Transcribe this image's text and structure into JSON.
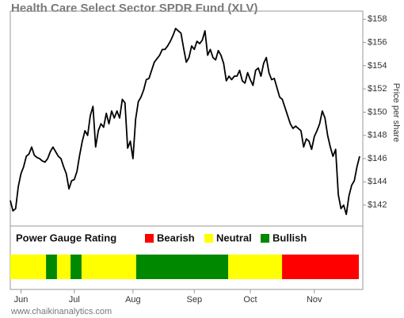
{
  "chart_data": {
    "type": "line",
    "title": "Health Care Select Sector SPDR Fund (XLV)",
    "y_label": "Price per share",
    "color": "#000000",
    "values": [
      142.4,
      141.5,
      141.7,
      143.6,
      144.7,
      145.3,
      146.2,
      146.4,
      147.0,
      146.3,
      146.1,
      146.0,
      145.8,
      145.7,
      146.0,
      146.6,
      147.0,
      146.6,
      146.2,
      146.0,
      145.3,
      144.7,
      143.4,
      144.1,
      144.2,
      144.9,
      146.3,
      147.5,
      148.4,
      148.0,
      149.7,
      150.5,
      147.0,
      148.4,
      149.0,
      148.7,
      149.9,
      149.0,
      150.1,
      149.5,
      150.1,
      149.5,
      151.1,
      150.8,
      146.9,
      147.5,
      146.0,
      149.4,
      150.9,
      151.3,
      151.9,
      152.8,
      152.9,
      153.6,
      154.3,
      154.6,
      154.9,
      155.4,
      155.4,
      155.7,
      156.1,
      156.6,
      157.2,
      157.0,
      156.8,
      155.5,
      154.3,
      154.7,
      155.7,
      155.4,
      156.1,
      155.9,
      156.2,
      157.0,
      154.9,
      155.4,
      154.7,
      154.5,
      155.3,
      154.9,
      154.2,
      152.7,
      153.1,
      152.8,
      153.1,
      153.1,
      153.6,
      152.7,
      152.5,
      153.4,
      152.8,
      152.3,
      153.6,
      153.8,
      153.1,
      154.2,
      154.7,
      153.4,
      152.8,
      152.9,
      152.1,
      151.3,
      151.1,
      150.4,
      149.7,
      149.0,
      148.6,
      148.8,
      148.6,
      148.4,
      147.0,
      147.7,
      147.5,
      146.8,
      147.9,
      148.4,
      149.0,
      150.1,
      149.5,
      148.0,
      147.0,
      146.2,
      146.8,
      142.9,
      141.7,
      142.0,
      141.2,
      142.8,
      143.7,
      144.1,
      145.3,
      146.2
    ],
    "xlim": [
      0,
      131
    ],
    "xticks": [
      {
        "value": 4,
        "label": "Jun"
      },
      {
        "value": 24,
        "label": "Jul"
      },
      {
        "value": 46,
        "label": "Aug"
      },
      {
        "value": 69,
        "label": "Sep"
      },
      {
        "value": 90,
        "label": "Oct"
      },
      {
        "value": 114,
        "label": "Nov"
      }
    ],
    "ylim": [
      140.2,
      158.7
    ],
    "yticks": [
      {
        "value": 142,
        "label": "$142"
      },
      {
        "value": 144,
        "label": "$144"
      },
      {
        "value": 146,
        "label": "$146"
      },
      {
        "value": 148,
        "label": "$148"
      },
      {
        "value": 150,
        "label": "$150"
      },
      {
        "value": 152,
        "label": "$152"
      },
      {
        "value": 154,
        "label": "$154"
      },
      {
        "value": 156,
        "label": "$156"
      },
      {
        "value": 158,
        "label": "$158"
      }
    ],
    "gauge": {
      "title": "Power Gauge Rating",
      "ratings": [
        {
          "name": "Bearish",
          "color": "#ff0000",
          "ranges": [
            [
              101.9,
              130.7
            ]
          ]
        },
        {
          "name": "Neutral",
          "color": "#ffff00",
          "ranges": [
            [
              0,
              13.4
            ],
            [
              17.5,
              22.6
            ],
            [
              26.7,
              47.2
            ],
            [
              81.7,
              101.9
            ]
          ]
        },
        {
          "name": "Bullish",
          "color": "#008800",
          "ranges": [
            [
              13.4,
              17.5
            ],
            [
              22.6,
              26.7
            ],
            [
              47.2,
              81.7
            ]
          ]
        }
      ]
    },
    "source": "www.chaikinanalytics.com"
  }
}
